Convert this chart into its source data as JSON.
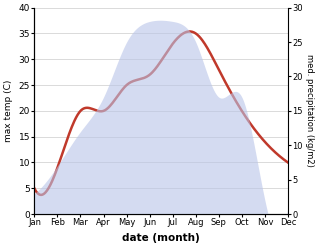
{
  "months": [
    "Jan",
    "Feb",
    "Mar",
    "Apr",
    "May",
    "Jun",
    "Jul",
    "Aug",
    "Sep",
    "Oct",
    "Nov",
    "Dec"
  ],
  "max_temp": [
    5,
    9,
    20,
    20,
    25,
    27,
    33,
    35,
    28,
    20,
    14,
    10
  ],
  "precipitation": [
    3,
    7,
    12,
    17,
    25,
    28,
    28,
    25,
    17,
    17,
    2,
    1
  ],
  "temp_ylim": [
    0,
    40
  ],
  "precip_ylim": [
    0,
    30
  ],
  "temp_ylabel": "max temp (C)",
  "precip_ylabel": "med. precipitation (kg/m2)",
  "xlabel": "date (month)",
  "line_color": "#c0392b",
  "fill_color": "#b8c4e8",
  "fill_alpha": 0.6,
  "bg_color": "#ffffff",
  "line_width": 1.8,
  "figsize": [
    3.18,
    2.47
  ],
  "dpi": 100
}
